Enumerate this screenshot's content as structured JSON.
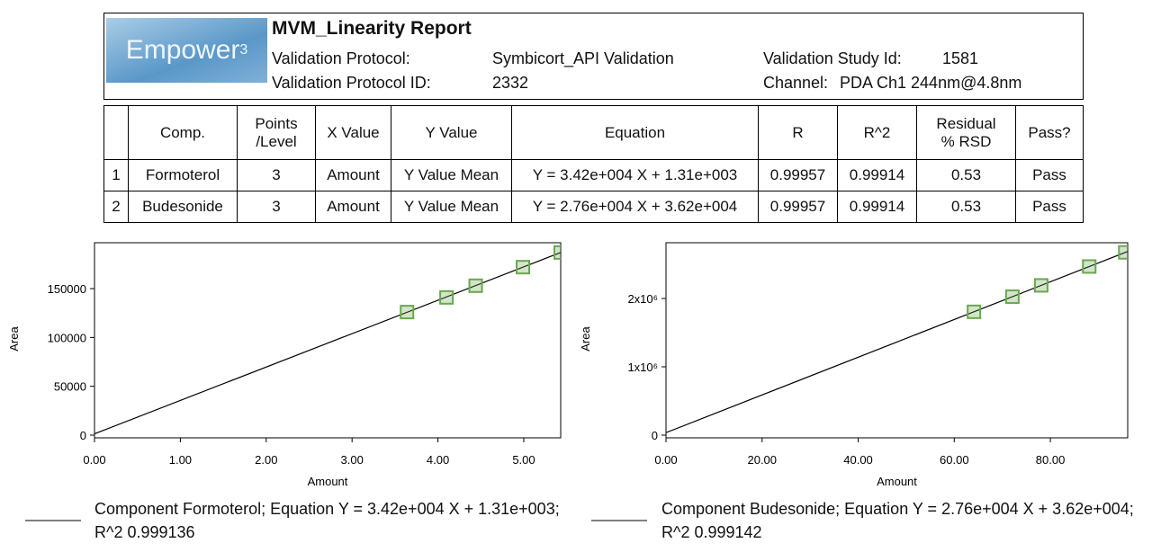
{
  "header": {
    "logo": "Empower",
    "logo_mark": "3",
    "title": "MVM_Linearity Report",
    "fields": [
      {
        "label": "Validation Protocol:",
        "value": "Symbicort_API Validation"
      },
      {
        "label": "Validation Protocol ID:",
        "value": "2332"
      },
      {
        "label": "Validation Study Id:",
        "value": "1581"
      },
      {
        "label": "Channel:",
        "value": "PDA Ch1 244nm@4.8nm"
      }
    ]
  },
  "table": {
    "header": [
      "Comp.",
      "Points\n/Level",
      "X Value",
      "Y Value",
      "Equation",
      "R",
      "R^2",
      "Residual\n% RSD",
      "Pass?"
    ],
    "rows": [
      [
        "1",
        "Formoterol",
        "3",
        "Amount",
        "Y Value Mean",
        "Y = 3.42e+004 X + 1.31e+003",
        "0.99957",
        "0.99914",
        "0.53",
        "Pass"
      ],
      [
        "2",
        "Budesonide",
        "3",
        "Amount",
        "Y Value Mean",
        "Y = 2.76e+004 X + 3.62e+004",
        "0.99957",
        "0.99914",
        "0.53",
        "Pass"
      ]
    ]
  },
  "chart_data": [
    {
      "type": "scatter",
      "x_label": "Amount",
      "y_label": "Area",
      "x": [
        3.64,
        4.1,
        4.44,
        4.99,
        5.43
      ],
      "values": [
        126000,
        141000,
        153000,
        172000,
        187000
      ],
      "fit": {
        "slope": 34200,
        "intercept": 1310
      },
      "marker_color": "#6aa84f",
      "line_color": "#000000",
      "xlim": [
        0,
        5.43
      ],
      "ylim": [
        0,
        197000
      ],
      "xticks": [
        {
          "value": 0,
          "label": "0.00"
        },
        {
          "value": 1,
          "label": "1.00"
        },
        {
          "value": 2,
          "label": "2.00"
        },
        {
          "value": 3,
          "label": "3.00"
        },
        {
          "value": 4,
          "label": "4.00"
        },
        {
          "value": 5,
          "label": "5.00"
        }
      ],
      "yticks": [
        0,
        50000,
        100000,
        150000
      ],
      "caption": "Component Formoterol; Equation Y = 3.42e+004 X + 1.31e+003; R^2 0.999136"
    },
    {
      "type": "scatter",
      "x_label": "Amount",
      "y_label": "Area",
      "x": [
        64.1,
        72.1,
        78.1,
        88.1,
        95.6
      ],
      "values": [
        1805000,
        2026000,
        2192000,
        2468000,
        2675000
      ],
      "fit": {
        "slope": 27600,
        "intercept": 36200
      },
      "marker_color": "#6aa84f",
      "line_color": "#000000",
      "xlim": [
        0,
        96.1
      ],
      "ylim": [
        0,
        2816000
      ],
      "xticks": [
        {
          "value": 0,
          "label": "0.00"
        },
        {
          "value": 20,
          "label": "20.00"
        },
        {
          "value": 40,
          "label": "40.00"
        },
        {
          "value": 60,
          "label": "60.00"
        },
        {
          "value": 80,
          "label": "80.00"
        }
      ],
      "yticks": [
        0,
        {
          "value": 1000000,
          "label": "1x10⁶"
        },
        {
          "value": 2000000,
          "label": "2x10⁶"
        }
      ],
      "caption": "Component Budesonide; Equation Y = 2.76e+004 X + 3.62e+004; R^2 0.999142"
    }
  ]
}
